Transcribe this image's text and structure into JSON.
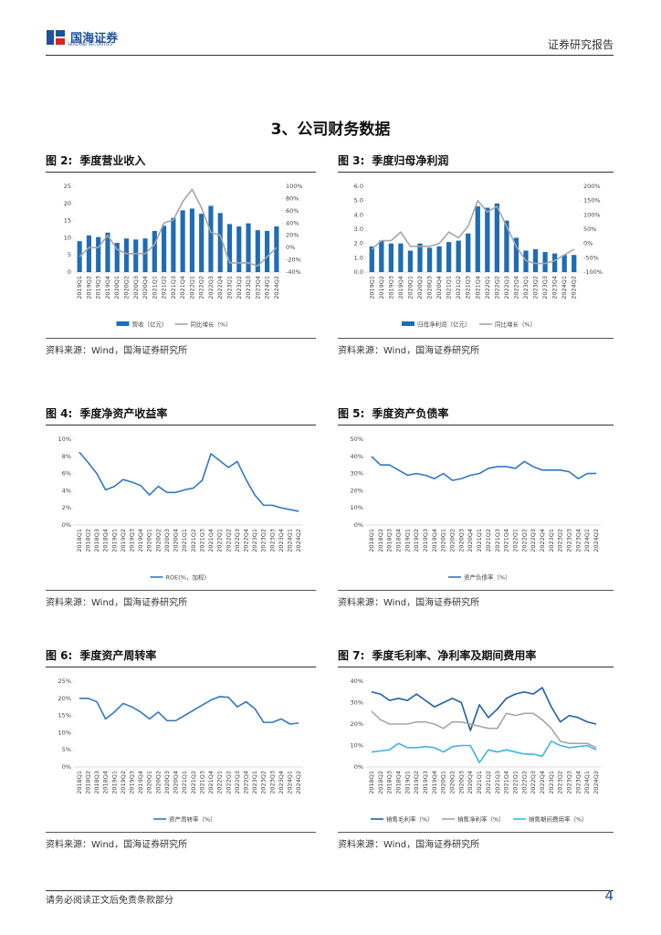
{
  "header": {
    "logo": "国海证券",
    "logo_en": "SEALAND SECURITIES",
    "report_type": "证券研究报告"
  },
  "section_title": "3、公司财务数据",
  "chart_data": [
    {
      "type": "bar",
      "figure_label": "图 2:",
      "title": "季度营业收入",
      "source": "资料来源：Wind，国海证券研究所",
      "categories": [
        "2019Q1",
        "2019Q2",
        "2019Q3",
        "2019Q4",
        "2020Q1",
        "2020Q2",
        "2020Q3",
        "2020Q4",
        "2021Q1",
        "2021Q2",
        "2021Q3",
        "2021Q4",
        "2022Q1",
        "2022Q2",
        "2022Q3",
        "2022Q4",
        "2023Q1",
        "2023Q2",
        "2023Q3",
        "2023Q4",
        "2024Q1",
        "2024Q2"
      ],
      "series": [
        {
          "name": "营收（亿元）",
          "color": "#1f6cb5",
          "values": [
            9,
            10.7,
            10.2,
            11.5,
            8.5,
            9.8,
            9.5,
            9.8,
            12,
            13.5,
            15.8,
            18,
            18.5,
            17,
            19.3,
            17.2,
            14,
            13.3,
            14.2,
            12.2,
            12,
            13.3
          ]
        },
        {
          "name": "同比增长（%）",
          "type": "line",
          "axis": "y2",
          "color": "#a6a6a6",
          "values": [
            -15,
            0,
            0,
            20,
            -3,
            -10,
            -10,
            -10,
            5,
            40,
            45,
            75,
            95,
            65,
            25,
            20,
            -25,
            -25,
            -25,
            -30,
            -15,
            0
          ]
        }
      ],
      "ylim": [
        0,
        25
      ],
      "yticks": [
        0,
        5,
        10,
        15,
        20,
        25
      ],
      "y2lim": [
        -40,
        100
      ],
      "y2ticks": [
        {
          "value": -40,
          "label": "-40%"
        },
        {
          "value": -20,
          "label": "-20%"
        },
        {
          "value": 0,
          "label": "0%"
        },
        {
          "value": 20,
          "label": "20%"
        },
        {
          "value": 40,
          "label": "40%"
        },
        {
          "value": 60,
          "label": "60%"
        },
        {
          "value": 80,
          "label": "80%"
        },
        {
          "value": 100,
          "label": "100%"
        }
      ],
      "grid": false
    },
    {
      "type": "bar",
      "figure_label": "图 3:",
      "title": "季度归母净利润",
      "source": "资料来源：Wind，国海证券研究所",
      "categories": [
        "2019Q1",
        "2019Q2",
        "2019Q3",
        "2019Q4",
        "2020Q1",
        "2020Q2",
        "2020Q3",
        "2020Q4",
        "2021Q1",
        "2021Q2",
        "2021Q3",
        "2021Q4",
        "2022Q1",
        "2022Q2",
        "2022Q3",
        "2022Q4",
        "2023Q1",
        "2023Q2",
        "2023Q3",
        "2023Q4",
        "2024Q1",
        "2024Q2"
      ],
      "series": [
        {
          "name": "归母净利润（亿元）",
          "color": "#1f6cb5",
          "values": [
            1.8,
            2.2,
            2.0,
            2.0,
            1.5,
            2.0,
            1.7,
            1.8,
            2.1,
            2.2,
            2.7,
            4.6,
            4.5,
            4.8,
            3.6,
            2.4,
            1.5,
            1.6,
            1.4,
            1.3,
            1.2,
            1.2
          ]
        },
        {
          "name": "同比增长（%）",
          "type": "line",
          "axis": "y2",
          "color": "#a6a6a6",
          "values": [
            -20,
            10,
            10,
            40,
            -10,
            -10,
            -10,
            0,
            40,
            20,
            60,
            150,
            110,
            130,
            60,
            -10,
            -60,
            -70,
            -70,
            -60,
            -40,
            -20
          ]
        }
      ],
      "ylim": [
        0,
        6
      ],
      "yticks": [
        {
          "value": 0,
          "label": "0.0"
        },
        {
          "value": 1,
          "label": "1.0"
        },
        {
          "value": 2,
          "label": "2.0"
        },
        {
          "value": 3,
          "label": "3.0"
        },
        {
          "value": 4,
          "label": "4.0"
        },
        {
          "value": 5,
          "label": "5.0"
        },
        {
          "value": 6,
          "label": "6.0"
        }
      ],
      "y2lim": [
        -100,
        200
      ],
      "y2ticks": [
        {
          "value": -100,
          "label": "-100%"
        },
        {
          "value": -50,
          "label": "-50%"
        },
        {
          "value": 0,
          "label": "0%"
        },
        {
          "value": 50,
          "label": "50%"
        },
        {
          "value": 100,
          "label": "100%"
        },
        {
          "value": 150,
          "label": "150%"
        },
        {
          "value": 200,
          "label": "200%"
        }
      ],
      "grid": false
    },
    {
      "type": "line",
      "figure_label": "图 4:",
      "title": "季度净资产收益率",
      "source": "资料来源：Wind，国海证券研究所",
      "categories": [
        "2018Q1",
        "2018Q2",
        "2018Q3",
        "2018Q4",
        "2019Q1",
        "2019Q2",
        "2019Q3",
        "2019Q4",
        "2020Q1",
        "2020Q2",
        "2020Q3",
        "2020Q4",
        "2021Q1",
        "2021Q2",
        "2021Q3",
        "2021Q4",
        "2022Q1",
        "2022Q2",
        "2022Q3",
        "2022Q4",
        "2023Q1",
        "2023Q2",
        "2023Q3",
        "2023Q4",
        "2024Q1",
        "2024Q2"
      ],
      "series": [
        {
          "name": "ROE(%，加权)",
          "color": "#2e78c7",
          "values": [
            8.5,
            7.3,
            6.0,
            4.1,
            4.5,
            5.3,
            5.0,
            4.6,
            3.5,
            4.5,
            3.8,
            3.8,
            4.1,
            4.3,
            5.2,
            8.3,
            7.5,
            6.7,
            7.4,
            5.3,
            3.5,
            2.3,
            2.3,
            2.0,
            1.8,
            1.6
          ]
        }
      ],
      "ylim": [
        0,
        10
      ],
      "yticks": [
        {
          "value": 0,
          "label": "0%"
        },
        {
          "value": 2,
          "label": "2%"
        },
        {
          "value": 4,
          "label": "4%"
        },
        {
          "value": 6,
          "label": "6%"
        },
        {
          "value": 8,
          "label": "8%"
        },
        {
          "value": 10,
          "label": "10%"
        }
      ],
      "grid": false
    },
    {
      "type": "line",
      "figure_label": "图 5:",
      "title": "季度资产负债率",
      "source": "资料来源：Wind，国海证券研究所",
      "categories": [
        "2018Q1",
        "2018Q2",
        "2018Q3",
        "2018Q4",
        "2019Q1",
        "2019Q2",
        "2019Q3",
        "2019Q4",
        "2020Q1",
        "2020Q2",
        "2020Q3",
        "2020Q4",
        "2021Q1",
        "2021Q2",
        "2021Q3",
        "2021Q4",
        "2022Q1",
        "2022Q2",
        "2022Q3",
        "2022Q4",
        "2023Q1",
        "2023Q2",
        "2023Q3",
        "2023Q4",
        "2024Q1",
        "2024Q2"
      ],
      "series": [
        {
          "name": "资产负债率（%）",
          "color": "#2e78c7",
          "values": [
            40,
            35,
            35,
            32,
            29,
            30,
            29,
            27,
            30,
            26,
            27,
            29,
            30,
            33,
            34,
            34,
            33,
            37,
            34,
            32,
            32,
            32,
            31,
            27,
            30,
            30
          ]
        }
      ],
      "ylim": [
        0,
        50
      ],
      "yticks": [
        {
          "value": 0,
          "label": "0%"
        },
        {
          "value": 10,
          "label": "10%"
        },
        {
          "value": 20,
          "label": "20%"
        },
        {
          "value": 30,
          "label": "30%"
        },
        {
          "value": 40,
          "label": "40%"
        },
        {
          "value": 50,
          "label": "50%"
        }
      ],
      "grid": false
    },
    {
      "type": "line",
      "figure_label": "图 6:",
      "title": "季度资产周转率",
      "source": "资料来源：Wind，国海证券研究所",
      "categories": [
        "2018Q1",
        "2018Q2",
        "2018Q3",
        "2018Q4",
        "2019Q1",
        "2019Q2",
        "2019Q3",
        "2019Q4",
        "2020Q1",
        "2020Q2",
        "2020Q3",
        "2020Q4",
        "2021Q1",
        "2021Q2",
        "2021Q3",
        "2021Q4",
        "2022Q1",
        "2022Q2",
        "2022Q3",
        "2022Q4",
        "2023Q1",
        "2023Q2",
        "2023Q3",
        "2023Q4",
        "2024Q1",
        "2024Q2"
      ],
      "series": [
        {
          "name": "资产周转率（%）",
          "color": "#2e78c7",
          "values": [
            20,
            20,
            19,
            14,
            16,
            18.5,
            17.5,
            16,
            14,
            16,
            13.5,
            13.5,
            15,
            16.5,
            18,
            19.5,
            20.5,
            20.3,
            17.5,
            19,
            17,
            13,
            13,
            14,
            12.5,
            12.8
          ]
        }
      ],
      "ylim": [
        0,
        25
      ],
      "yticks": [
        {
          "value": 0,
          "label": "0%"
        },
        {
          "value": 5,
          "label": "5%"
        },
        {
          "value": 10,
          "label": "10%"
        },
        {
          "value": 15,
          "label": "15%"
        },
        {
          "value": 20,
          "label": "20%"
        },
        {
          "value": 25,
          "label": "25%"
        }
      ],
      "grid": false
    },
    {
      "type": "line",
      "figure_label": "图 7:",
      "title": "季度毛利率、净利率及期间费用率",
      "source": "资料来源：Wind，国海证券研究所",
      "categories": [
        "2018Q1",
        "2018Q2",
        "2018Q3",
        "2018Q4",
        "2019Q1",
        "2019Q2",
        "2019Q3",
        "2019Q4",
        "2020Q1",
        "2020Q2",
        "2020Q3",
        "2020Q4",
        "2021Q1",
        "2021Q2",
        "2021Q3",
        "2021Q4",
        "2022Q1",
        "2022Q2",
        "2022Q3",
        "2022Q4",
        "2023Q1",
        "2023Q2",
        "2023Q3",
        "2023Q4",
        "2024Q1",
        "2024Q2"
      ],
      "series": [
        {
          "name": "销售毛利率（%）",
          "color": "#1f5fa8",
          "values": [
            35,
            34,
            31,
            32,
            31,
            34,
            31,
            28,
            30,
            32,
            30,
            17,
            29,
            23,
            27,
            32,
            34,
            35,
            34,
            37,
            28,
            21,
            24,
            23,
            21,
            20
          ]
        },
        {
          "name": "销售净利率（%）",
          "color": "#a5a5a5",
          "values": [
            26,
            22,
            20,
            20,
            20,
            21,
            21,
            20,
            18,
            21,
            21,
            20,
            19,
            18,
            18,
            25,
            24,
            25,
            25,
            22,
            18,
            12,
            11,
            11,
            11,
            9
          ]
        },
        {
          "name": "销售期间费用率（%）",
          "color": "#3cb4e5",
          "values": [
            7,
            7.5,
            8,
            11,
            9,
            9,
            9.5,
            9,
            7,
            9.5,
            10,
            10,
            2,
            8,
            7,
            8,
            7,
            6,
            6,
            5,
            12,
            10,
            9,
            9.5,
            10,
            8
          ]
        }
      ],
      "ylim": [
        0,
        40
      ],
      "yticks": [
        {
          "value": 0,
          "label": "0%"
        },
        {
          "value": 10,
          "label": "10%"
        },
        {
          "value": 20,
          "label": "20%"
        },
        {
          "value": 30,
          "label": "30%"
        },
        {
          "value": 40,
          "label": "40%"
        }
      ],
      "grid": false
    }
  ],
  "footer": {
    "disclaimer": "请务必阅读正文后免责条款部分",
    "page": "4"
  }
}
